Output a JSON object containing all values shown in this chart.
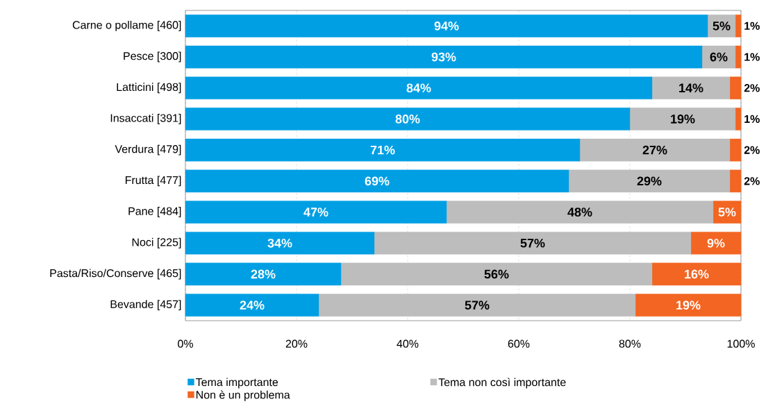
{
  "chart_data": {
    "type": "bar",
    "orientation": "horizontal",
    "stacked": true,
    "categories": [
      "Carne o pollame [460]",
      "Pesce [300]",
      "Latticini [498]",
      "Insaccati [391]",
      "Verdura [479]",
      "Frutta [477]",
      "Pane [484]",
      "Noci [225]",
      "Pasta/Riso/Conserve [465]",
      "Bevande [457]"
    ],
    "series": [
      {
        "name": "Tema importante",
        "color": "#009fe3",
        "values": [
          94,
          93,
          84,
          80,
          71,
          69,
          47,
          34,
          28,
          24
        ],
        "value_labels": [
          "94%",
          "93%",
          "84%",
          "80%",
          "71%",
          "69%",
          "47%",
          "34%",
          "28%",
          "24%"
        ]
      },
      {
        "name": "Tema non così importante",
        "color": "#bdbdbd",
        "values": [
          5,
          6,
          14,
          19,
          27,
          29,
          48,
          57,
          56,
          57
        ],
        "value_labels": [
          "5%",
          "6%",
          "14%",
          "19%",
          "27%",
          "29%",
          "48%",
          "57%",
          "56%",
          "57%"
        ]
      },
      {
        "name": "Non è un problema",
        "color": "#f26522",
        "values": [
          1,
          1,
          2,
          1,
          2,
          2,
          5,
          9,
          16,
          19
        ],
        "value_labels": [
          "1%",
          "1%",
          "2%",
          "1%",
          "2%",
          "2%",
          "5%",
          "9%",
          "16%",
          "19%"
        ]
      }
    ],
    "xlim": [
      0,
      100
    ],
    "xticks": [
      {
        "value": 0,
        "label": "0%"
      },
      {
        "value": 20,
        "label": "20%"
      },
      {
        "value": 40,
        "label": "40%"
      },
      {
        "value": 60,
        "label": "60%"
      },
      {
        "value": 80,
        "label": "80%"
      },
      {
        "value": 100,
        "label": "100%"
      }
    ],
    "grid": "x",
    "legend": "bottom"
  }
}
